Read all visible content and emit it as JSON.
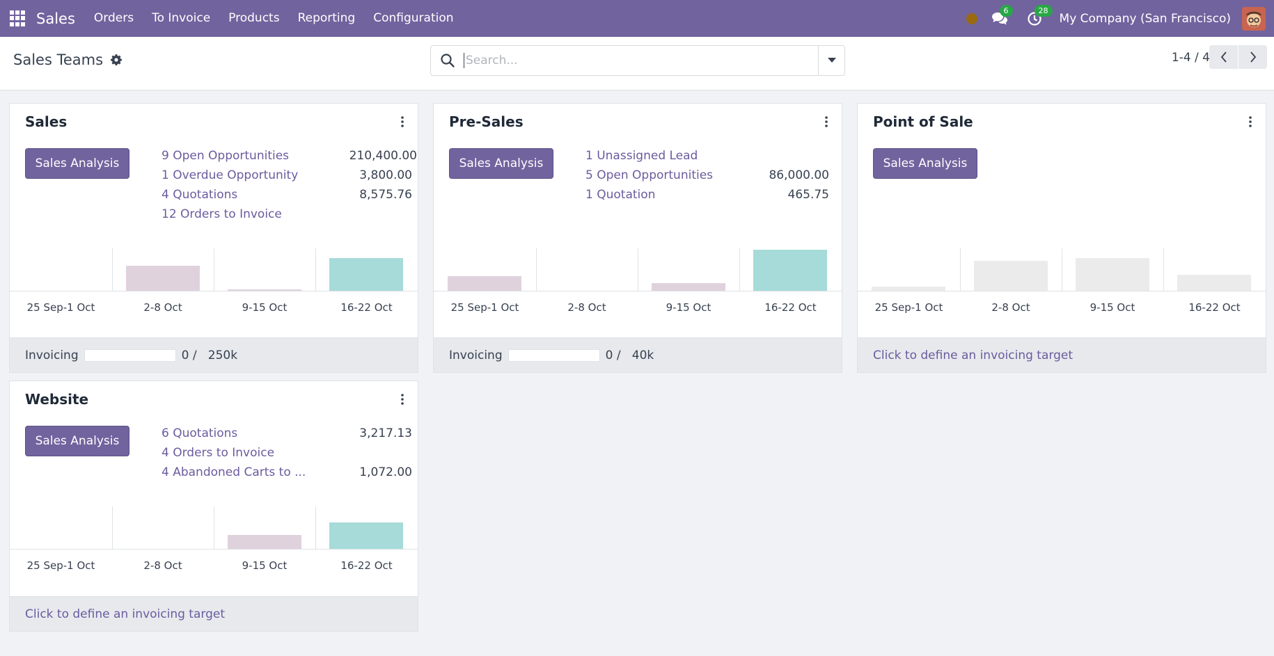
{
  "navbar": {
    "brand": "Sales",
    "menu": [
      "Orders",
      "To Invoice",
      "Products",
      "Reporting",
      "Configuration"
    ],
    "messages_count": "6",
    "activities_count": "28",
    "company": "My Company (San Francisco)"
  },
  "control_panel": {
    "title": "Sales Teams",
    "search_placeholder": "Search...",
    "pager": "1-4 / 4"
  },
  "chart_labels": [
    "25 Sep-1 Oct",
    "2-8 Oct",
    "9-15 Oct",
    "16-22 Oct"
  ],
  "teams": [
    {
      "name": "Sales",
      "button": "Sales Analysis",
      "stats": [
        {
          "label": "9 Open Opportunities",
          "value": "210,400.00"
        },
        {
          "label": "1 Overdue Opportunity",
          "value": "3,800.00"
        },
        {
          "label": "4 Quotations",
          "value": "8,575.76"
        },
        {
          "label": "12 Orders to Invoice",
          "value": ""
        }
      ],
      "footer": {
        "label": "Invoicing",
        "progress": 0,
        "nums": "0 /   250k"
      }
    },
    {
      "name": "Pre-Sales",
      "button": "Sales Analysis",
      "stats": [
        {
          "label": "1 Unassigned Lead",
          "value": ""
        },
        {
          "label": "5 Open Opportunities",
          "value": "86,000.00"
        },
        {
          "label": "1 Quotation",
          "value": "465.75"
        }
      ],
      "footer": {
        "label": "Invoicing",
        "progress": 0,
        "nums": "0 /   40k"
      }
    },
    {
      "name": "Point of Sale",
      "button": "Sales Analysis",
      "stats": [],
      "footer": {
        "link": "Click to define an invoicing target"
      }
    },
    {
      "name": "Website",
      "button": "Sales Analysis",
      "stats": [
        {
          "label": "6 Quotations",
          "value": "3,217.13"
        },
        {
          "label": "4 Orders to Invoice",
          "value": ""
        },
        {
          "label": "4  Abandoned Carts to ...",
          "value": "1,072.00"
        }
      ],
      "footer": {
        "link": "Click to define an invoicing target"
      }
    }
  ],
  "colors": {
    "navbar": "#71639e",
    "accent_link": "#6b5b9e",
    "bar_past": "#e0d2dd",
    "bar_current": "#a6dbd9",
    "bar_empty": "#ebebeb"
  }
}
